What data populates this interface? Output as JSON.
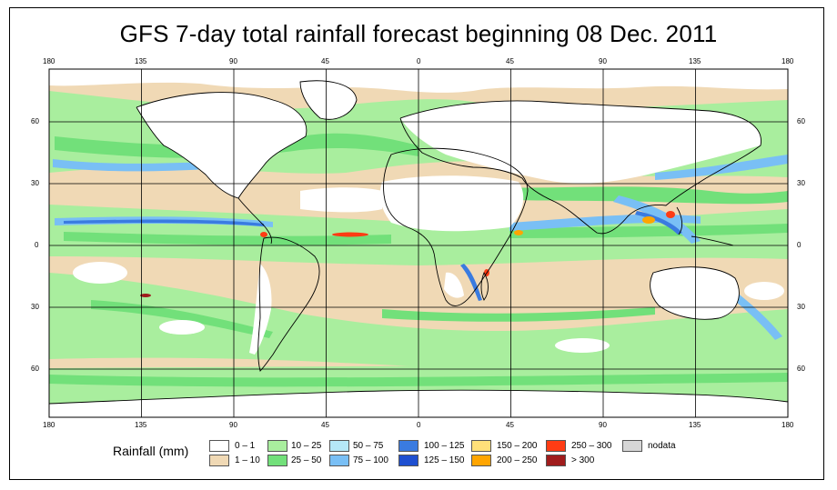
{
  "title": "GFS 7-day total rainfall forecast beginning 08 Dec. 2011",
  "lon_ticks": [
    "180",
    "135",
    "90",
    "45",
    "0",
    "45",
    "90",
    "135",
    "180"
  ],
  "lat_ticks": [
    "60",
    "30",
    "0",
    "30",
    "60"
  ],
  "legend": {
    "title": "Rainfall (mm)",
    "items": [
      {
        "label": "0 – 1",
        "color": "#ffffff"
      },
      {
        "label": "1 – 10",
        "color": "#f0d9b5"
      },
      {
        "label": "10 – 25",
        "color": "#a9ee9e"
      },
      {
        "label": "25 – 50",
        "color": "#72e07a"
      },
      {
        "label": "50 – 75",
        "color": "#b5e8f7"
      },
      {
        "label": "75 – 100",
        "color": "#79bff5"
      },
      {
        "label": "100 – 125",
        "color": "#3a7be0"
      },
      {
        "label": "125 – 150",
        "color": "#1e4fd0"
      },
      {
        "label": "150 – 200",
        "color": "#ffe07a"
      },
      {
        "label": "200 – 250",
        "color": "#ffa500"
      },
      {
        "label": "250 – 300",
        "color": "#ff3c14"
      },
      {
        "label": "> 300",
        "color": "#a01c1c"
      },
      {
        "label": "nodata",
        "color": "#d6d6d6"
      }
    ]
  }
}
